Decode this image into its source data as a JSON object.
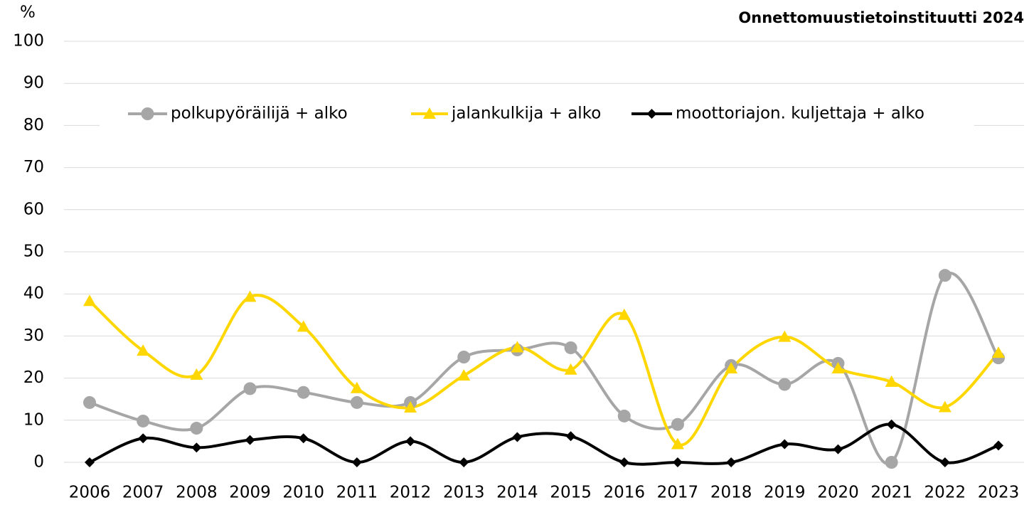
{
  "chart_data": {
    "type": "line",
    "title": "Onnettomuustietoinstituutti  2024",
    "y_label": "%",
    "categories": [
      "2006",
      "2007",
      "2008",
      "2009",
      "2010",
      "2011",
      "2012",
      "2013",
      "2014",
      "2015",
      "2016",
      "2017",
      "2018",
      "2019",
      "2020",
      "2021",
      "2022",
      "2023"
    ],
    "series": [
      {
        "name": "polkupyöräilijä + alko",
        "color": "#a6a6a6",
        "marker": "circle",
        "values": [
          14.2,
          9.8,
          8.1,
          17.5,
          16.6,
          14.2,
          14.2,
          25,
          26.7,
          27.2,
          11,
          9,
          23,
          18.5,
          23.5,
          0,
          44.4,
          24.8
        ]
      },
      {
        "name": "jalankulkija + alko",
        "color": "#ffd700",
        "marker": "triangle",
        "values": [
          38.3,
          26.5,
          20.8,
          39.3,
          32.2,
          17.6,
          13,
          20.6,
          27.3,
          22,
          35,
          4.3,
          22.3,
          29.8,
          22.3,
          19.1,
          13.1,
          26
        ]
      },
      {
        "name": "moottoriajon. kuljettaja + alko",
        "color": "#000000",
        "marker": "diamond",
        "values": [
          0,
          5.7,
          3.5,
          5.3,
          5.7,
          0,
          5,
          0,
          6,
          6.2,
          0,
          0,
          0,
          4.3,
          3.1,
          9,
          0,
          4
        ]
      }
    ],
    "ylim": [
      0,
      100
    ],
    "yticks": [
      0,
      10,
      20,
      30,
      40,
      50,
      60,
      70,
      80,
      90,
      100
    ],
    "grid": true,
    "smooth": true,
    "legend": "top"
  }
}
